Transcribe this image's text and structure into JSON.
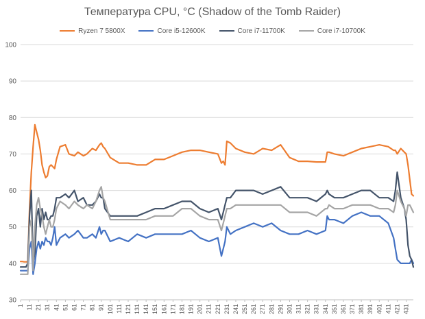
{
  "chart_data": {
    "type": "line",
    "title": "Температура CPU, °C (Shadow of the Tomb Raider)",
    "xlabel": "",
    "ylabel": "",
    "ylim": [
      30,
      100
    ],
    "yticks": [
      30,
      40,
      50,
      60,
      70,
      80,
      90,
      100
    ],
    "grid": true,
    "legend_position": "top",
    "x_tick_labels": [
      "1",
      "11",
      "21",
      "31",
      "41",
      "51",
      "61",
      "71",
      "81",
      "91",
      "101",
      "111",
      "121",
      "131",
      "141",
      "151",
      "161",
      "171",
      "181",
      "191",
      "201",
      "211",
      "221",
      "231",
      "241",
      "251",
      "261",
      "271",
      "281",
      "291",
      "301",
      "311",
      "321",
      "331",
      "341",
      "351",
      "361",
      "371",
      "381",
      "391",
      "401",
      "411",
      "421",
      "431"
    ],
    "x": [
      1,
      3,
      5,
      7,
      9,
      11,
      13,
      15,
      17,
      19,
      21,
      23,
      25,
      27,
      29,
      31,
      33,
      35,
      37,
      39,
      41,
      45,
      51,
      55,
      61,
      65,
      71,
      75,
      81,
      85,
      89,
      91,
      93,
      95,
      101,
      111,
      121,
      131,
      141,
      151,
      161,
      171,
      181,
      191,
      201,
      211,
      221,
      225,
      227,
      229,
      231,
      235,
      241,
      251,
      261,
      271,
      281,
      291,
      301,
      311,
      321,
      331,
      341,
      343,
      345,
      351,
      361,
      371,
      381,
      391,
      401,
      411,
      417,
      419,
      421,
      425,
      429,
      431,
      433,
      435,
      437,
      439
    ],
    "series": [
      {
        "name": "Ryzen 7 5800X",
        "color": "#ED7D31",
        "values": [
          40.5,
          40.5,
          40.4,
          40.4,
          40.4,
          55,
          65,
          72,
          78,
          76,
          74,
          71,
          67,
          65,
          63.5,
          64,
          66.5,
          67,
          66.5,
          66,
          68.5,
          72,
          72.5,
          70,
          69.5,
          70.5,
          69.5,
          70,
          71.5,
          71,
          72.5,
          73,
          72,
          71.5,
          69,
          67.5,
          67.5,
          67,
          67,
          68.5,
          68.5,
          69.5,
          70.5,
          71,
          71,
          70.5,
          70,
          67.5,
          68,
          67,
          73.5,
          73,
          71.5,
          70.5,
          70,
          71.5,
          71,
          72.5,
          69,
          68,
          68,
          67.8,
          67.8,
          70.5,
          70.5,
          70,
          69.5,
          70.5,
          71.5,
          72,
          72.5,
          72,
          71,
          71,
          70,
          71.5,
          70.5,
          70,
          67,
          63,
          59,
          58.5
        ]
      },
      {
        "name": "Core i5-12600K",
        "color": "#4472C4",
        "values": [
          38,
          38,
          38,
          38,
          38,
          44,
          46,
          37,
          40,
          44,
          46,
          44,
          46,
          45,
          47,
          46,
          46,
          45,
          47,
          50,
          45,
          47,
          48,
          47,
          48,
          49,
          47,
          47,
          48,
          47,
          50,
          48,
          49,
          49,
          46,
          47,
          46,
          48,
          47,
          48,
          48,
          48,
          48,
          49,
          47,
          46,
          47,
          42,
          44,
          46,
          50,
          48,
          49,
          50,
          51,
          50,
          51,
          49,
          48,
          48,
          49,
          48,
          49,
          53,
          52,
          52,
          51,
          53,
          54,
          53,
          53,
          51,
          47,
          44,
          41,
          40,
          40,
          40,
          40,
          40,
          41,
          40
        ]
      },
      {
        "name": "Core i7-11700K",
        "color": "#44546A",
        "values": [
          39,
          39,
          39,
          39,
          40,
          53,
          60,
          40,
          43,
          53,
          55,
          50,
          55,
          52,
          54,
          52,
          52,
          53,
          53,
          55,
          58,
          58,
          59,
          58,
          60,
          57,
          58,
          56,
          56,
          57,
          59,
          58,
          58,
          55,
          53,
          53,
          53,
          53,
          54,
          55,
          55,
          56,
          57,
          57,
          55,
          54,
          55,
          52,
          54,
          56,
          58,
          58,
          60,
          60,
          60,
          59,
          60,
          61,
          58,
          58,
          58,
          57,
          59,
          60,
          59,
          58,
          58,
          59,
          60,
          60,
          58,
          58,
          57,
          60,
          65,
          58,
          55,
          52,
          45,
          42,
          41,
          39
        ]
      },
      {
        "name": "Core i7-10700K",
        "color": "#A5A5A5",
        "values": [
          37,
          37,
          37,
          37,
          37,
          50,
          52,
          38,
          50,
          56,
          58,
          55,
          53,
          50,
          48,
          50,
          52,
          50,
          50,
          52,
          55,
          57,
          56,
          55,
          57,
          56,
          55,
          56,
          55,
          57,
          60,
          61,
          58,
          57,
          52,
          52,
          52,
          52,
          52,
          53,
          53,
          53,
          55,
          55,
          53,
          52,
          52,
          49,
          51,
          53,
          55,
          55,
          56,
          56,
          56,
          56,
          56,
          56,
          54,
          54,
          54,
          53,
          55,
          55,
          56,
          55,
          55,
          56,
          56,
          56,
          55,
          55,
          54,
          56,
          60,
          57,
          55,
          53,
          56,
          56,
          55,
          54
        ]
      }
    ]
  }
}
